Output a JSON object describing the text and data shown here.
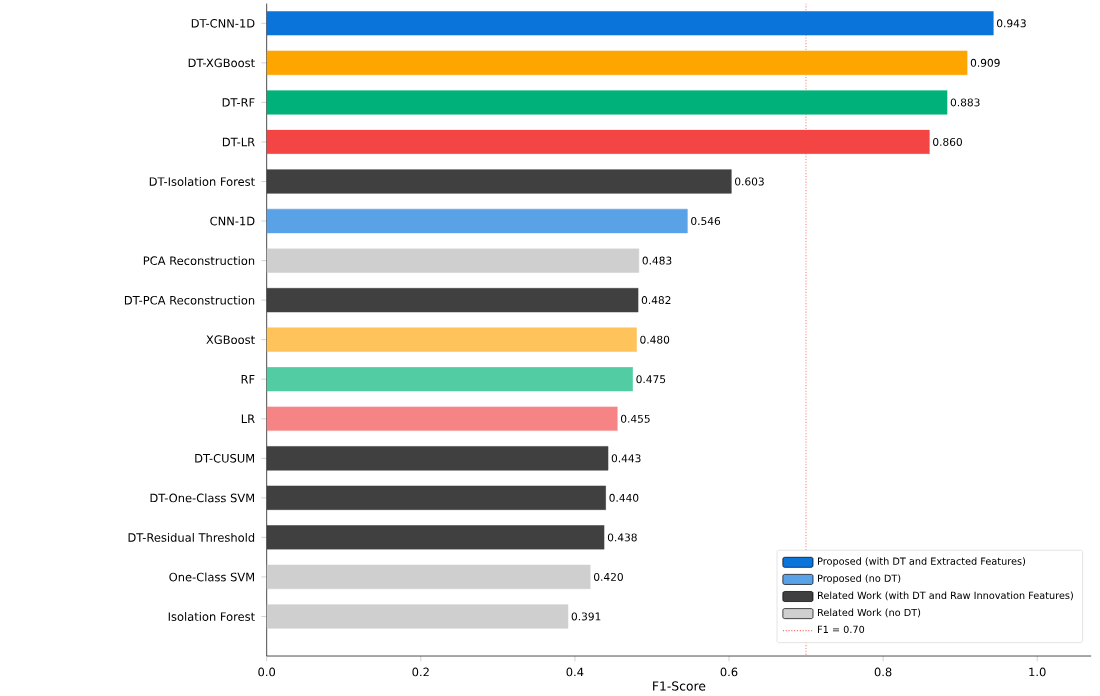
{
  "chart_data": {
    "type": "bar",
    "orientation": "horizontal",
    "xlabel": "F1-Score",
    "categories": [
      "DT-CNN-1D",
      "DT-XGBoost",
      "DT-RF",
      "DT-LR",
      "DT-Isolation Forest",
      "CNN-1D",
      "PCA Reconstruction",
      "DT-PCA Reconstruction",
      "XGBoost",
      "RF",
      "LR",
      "DT-CUSUM",
      "DT-One-Class SVM",
      "DT-Residual Threshold",
      "One-Class SVM",
      "Isolation Forest"
    ],
    "series": [
      {
        "name": "Proposed (with DT and Extracted Features)",
        "color": "#0a74da",
        "values": [
          0.943,
          0.909,
          0.883,
          0.86,
          null,
          null,
          null,
          null,
          null,
          null,
          null,
          null,
          null,
          null,
          null,
          null
        ],
        "colors": [
          "#0a74da",
          "#ffa500",
          "#00b27a",
          "#f44545",
          null,
          null,
          null,
          null,
          null,
          null,
          null,
          null,
          null,
          null,
          null,
          null
        ],
        "value_labels": [
          "0.943",
          "0.909",
          "0.883",
          "0.860",
          null,
          null,
          null,
          null,
          null,
          null,
          null,
          null,
          null,
          null,
          null,
          null
        ]
      },
      {
        "name": "Proposed (no DT)",
        "color": "#5aa2e8",
        "values": [
          null,
          null,
          null,
          null,
          null,
          0.546,
          null,
          null,
          0.48,
          0.475,
          0.455,
          null,
          null,
          null,
          null,
          null
        ],
        "colors": [
          null,
          null,
          null,
          null,
          null,
          "#5aa2e8",
          null,
          null,
          "#ffc35c",
          "#52cca2",
          "#f78484",
          null,
          null,
          null,
          null,
          null
        ],
        "value_labels": [
          null,
          null,
          null,
          null,
          null,
          "0.546",
          null,
          null,
          "0.480",
          "0.475",
          "0.455",
          null,
          null,
          null,
          null,
          null
        ]
      },
      {
        "name": "Related Work (with DT and Raw Innovation Features)",
        "color": "#404040",
        "values": [
          null,
          null,
          null,
          null,
          0.603,
          null,
          null,
          0.482,
          null,
          null,
          null,
          0.443,
          0.44,
          0.438,
          null,
          null
        ],
        "colors": [
          null,
          null,
          null,
          null,
          "#404040",
          null,
          null,
          "#404040",
          null,
          null,
          null,
          "#404040",
          "#404040",
          "#404040",
          null,
          null
        ],
        "value_labels": [
          null,
          null,
          null,
          null,
          "0.603",
          null,
          null,
          "0.482",
          null,
          null,
          null,
          "0.443",
          "0.440",
          "0.438",
          null,
          null
        ]
      },
      {
        "name": "Related Work (no DT)",
        "color": "#cfcfcf",
        "values": [
          null,
          null,
          null,
          null,
          null,
          null,
          0.483,
          null,
          null,
          null,
          null,
          null,
          null,
          null,
          0.42,
          0.391
        ],
        "colors": [
          null,
          null,
          null,
          null,
          null,
          null,
          "#cfcfcf",
          null,
          null,
          null,
          null,
          null,
          null,
          null,
          "#cfcfcf",
          "#cfcfcf"
        ],
        "value_labels": [
          null,
          null,
          null,
          null,
          null,
          null,
          "0.483",
          null,
          null,
          null,
          null,
          null,
          null,
          null,
          "0.420",
          "0.391"
        ]
      }
    ],
    "xlim": [
      0,
      1.07
    ],
    "xticks": [
      {
        "value": 0,
        "label": "0.0"
      },
      {
        "value": 0.2,
        "label": "0.2"
      },
      {
        "value": 0.4,
        "label": "0.4"
      },
      {
        "value": 0.6,
        "label": "0.6"
      },
      {
        "value": 0.8,
        "label": "0.8"
      },
      {
        "value": 1.0,
        "label": "1.0"
      }
    ],
    "ref_lines": [
      {
        "axis": "x",
        "value": 0.7,
        "label": "F1 = 0.70",
        "color": "#ff6666",
        "line_style": "dotted"
      }
    ],
    "legend": "bottom right"
  }
}
